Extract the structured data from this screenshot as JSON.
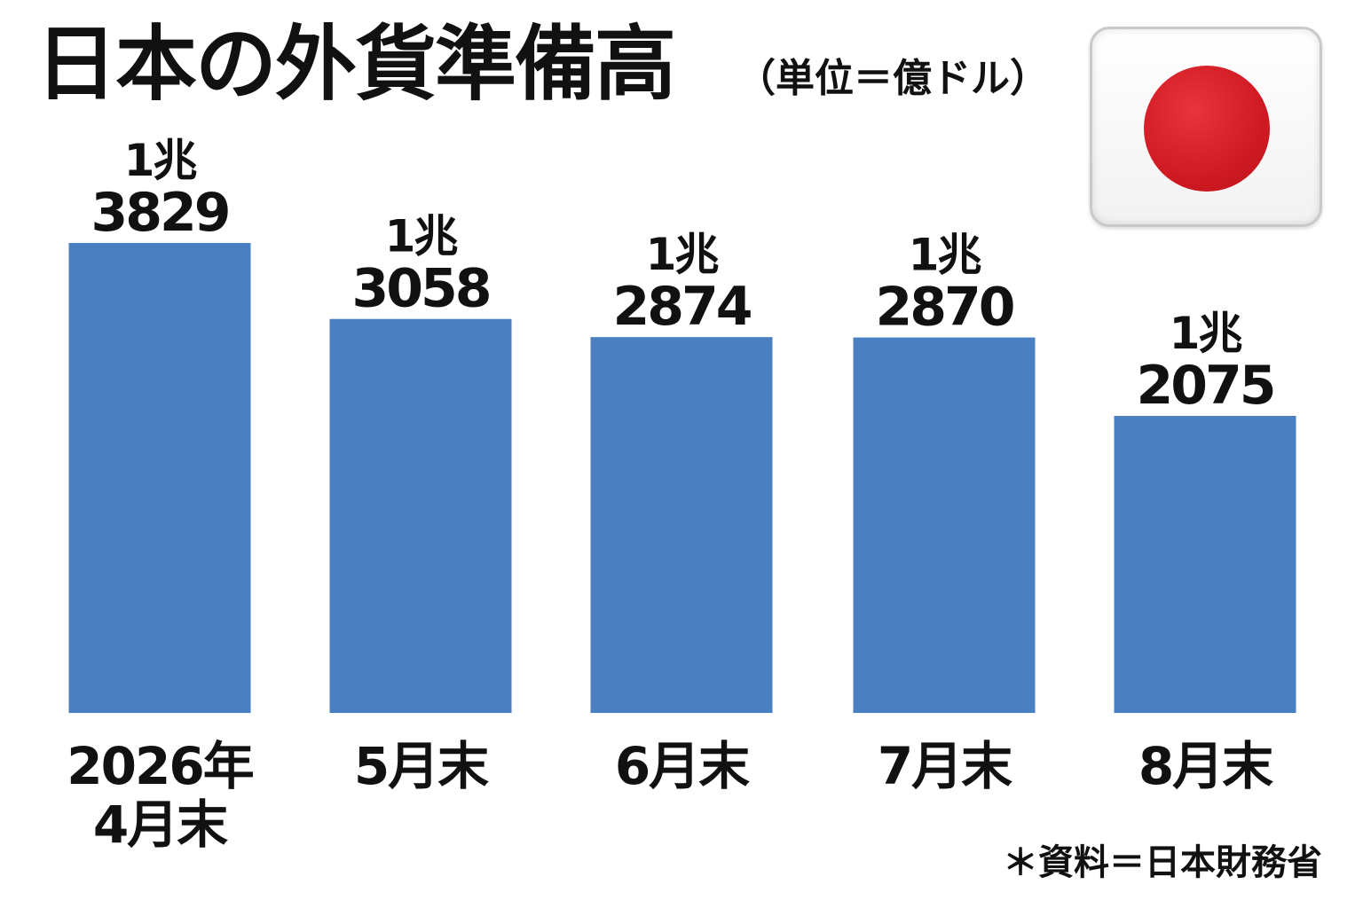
{
  "header": {
    "title": "日本の外貨準備高",
    "unit_note": "（単位＝億ドル）"
  },
  "flag": {
    "name": "japan-flag-icon",
    "disc_color": "#d11a23"
  },
  "footer": {
    "source": "＊資料＝日本財務省"
  },
  "chart_data": {
    "type": "bar",
    "categories": [
      [
        "2026年",
        "4月末"
      ],
      [
        "5月末"
      ],
      [
        "6月末"
      ],
      [
        "7月末"
      ],
      [
        "8月末"
      ]
    ],
    "values": [
      13829,
      13058,
      12874,
      12870,
      12075
    ],
    "value_labels": [
      [
        "1兆",
        "3829"
      ],
      [
        "1兆",
        "3058"
      ],
      [
        "1兆",
        "2874"
      ],
      [
        "1兆",
        "2870"
      ],
      [
        "1兆",
        "2075"
      ]
    ],
    "title": "日本の外貨準備高",
    "unit": "億ドル",
    "bar_color": "#4a7fc1",
    "grid": false,
    "legend": "none"
  }
}
